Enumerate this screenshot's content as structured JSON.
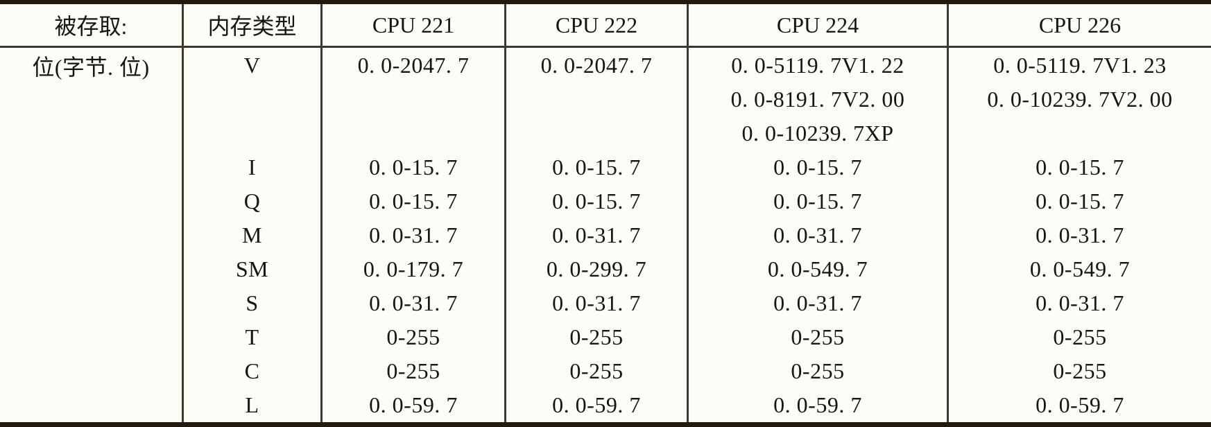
{
  "table": {
    "header": [
      "被存取:",
      "内存类型",
      "CPU 221",
      "CPU 222",
      "CPU 224",
      "CPU 226"
    ],
    "body_rows": [
      [
        "位(字节. 位)",
        "V",
        "0. 0-2047. 7",
        "0. 0-2047. 7",
        "0. 0-5119. 7V1. 22",
        "0. 0-5119. 7V1. 23"
      ],
      [
        "",
        "",
        "",
        "",
        "0. 0-8191. 7V2. 00",
        "0. 0-10239. 7V2. 00"
      ],
      [
        "",
        "",
        "",
        "",
        "0. 0-10239. 7XP",
        ""
      ],
      [
        "",
        "I",
        "0. 0-15. 7",
        "0. 0-15. 7",
        "0. 0-15. 7",
        "0. 0-15. 7"
      ],
      [
        "",
        "Q",
        "0. 0-15. 7",
        "0. 0-15. 7",
        "0. 0-15. 7",
        "0. 0-15. 7"
      ],
      [
        "",
        "M",
        "0. 0-31. 7",
        "0. 0-31. 7",
        "0. 0-31. 7",
        "0. 0-31. 7"
      ],
      [
        "",
        "SM",
        "0. 0-179. 7",
        "0. 0-299. 7",
        "0. 0-549. 7",
        "0. 0-549. 7"
      ],
      [
        "",
        "S",
        "0. 0-31. 7",
        "0. 0-31. 7",
        "0. 0-31. 7",
        "0. 0-31. 7"
      ],
      [
        "",
        "T",
        "0-255",
        "0-255",
        "0-255",
        "0-255"
      ],
      [
        "",
        "C",
        "0-255",
        "0-255",
        "0-255",
        "0-255"
      ],
      [
        "",
        "L",
        "0. 0-59. 7",
        "0. 0-59. 7",
        "0. 0-59. 7",
        "0. 0-59. 7"
      ]
    ]
  },
  "colors": {
    "background": "#fdfcf6",
    "heavy_rule": "#211b0e",
    "light_rule": "#3b392f",
    "text": "#161512"
  }
}
